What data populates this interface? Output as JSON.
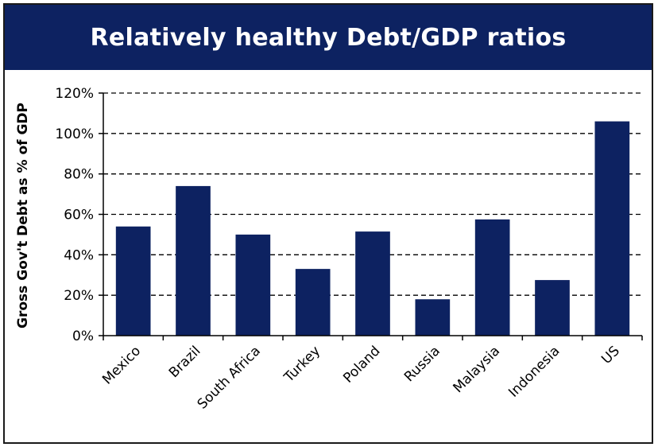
{
  "header": {
    "title": "Relatively healthy Debt/GDP ratios"
  },
  "colors": {
    "bar": "#0d2261",
    "banner": "#0d2261",
    "grid": "#000000"
  },
  "chart_data": {
    "type": "bar",
    "title": "Relatively healthy Debt/GDP ratios",
    "ylabel": "Gross Gov't Debt as % of GDP",
    "xlabel": "",
    "categories": [
      "Mexico",
      "Brazil",
      "South Africa",
      "Turkey",
      "Poland",
      "Russia",
      "Malaysia",
      "Indonesia",
      "US"
    ],
    "values": [
      54,
      74,
      50,
      33,
      51.5,
      18,
      57.5,
      27.5,
      106
    ],
    "ylim": [
      0,
      120
    ],
    "yticks": [
      0,
      20,
      40,
      60,
      80,
      100,
      120
    ],
    "ytick_labels": [
      "0%",
      "20%",
      "40%",
      "60%",
      "80%",
      "100%",
      "120%"
    ],
    "grid": "horizontal dashed",
    "legend": "none"
  }
}
